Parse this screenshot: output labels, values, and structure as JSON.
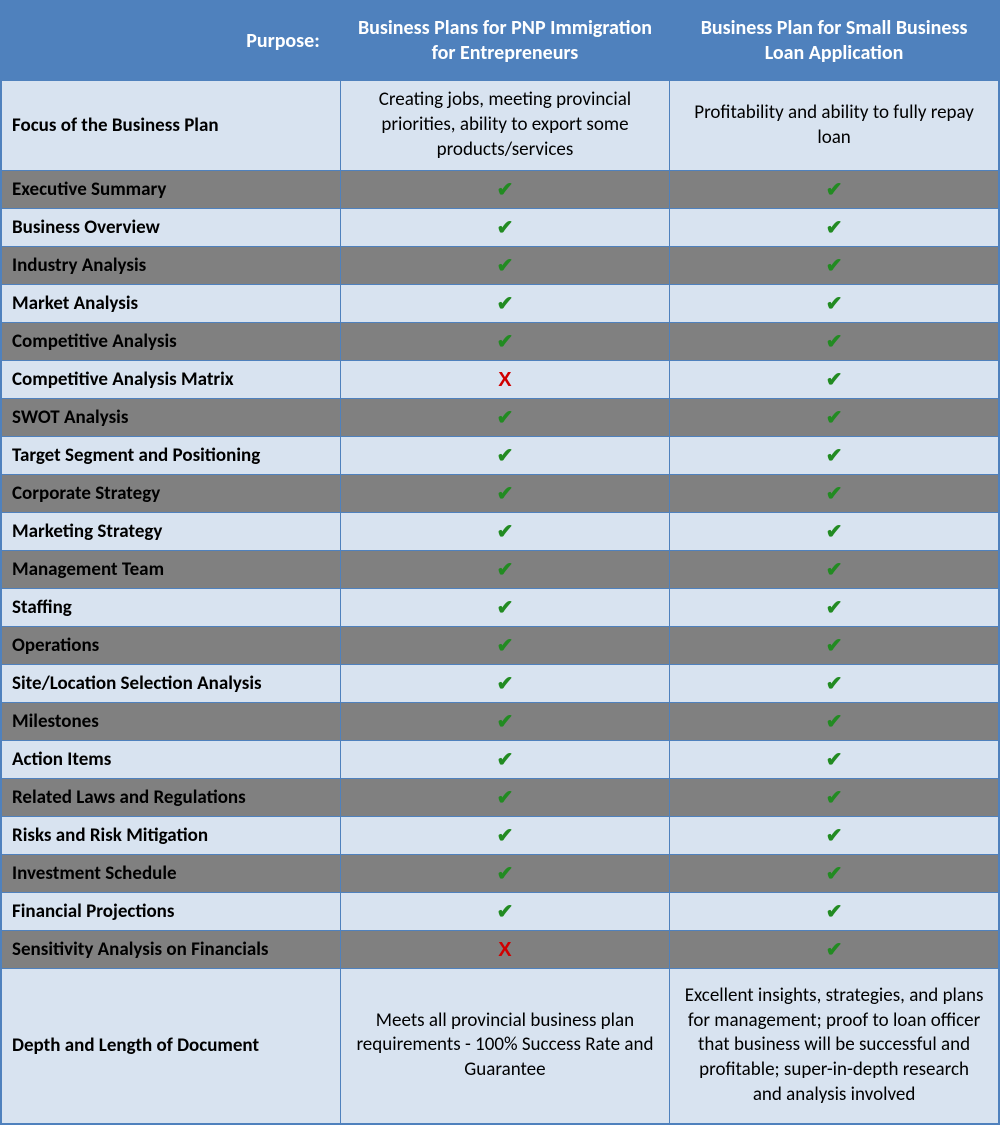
{
  "header": {
    "purpose_label": "Purpose:",
    "col_a": "Business Plans for PNP Immigration for Entrepreneurs",
    "col_b": "Business Plan for Small Business Loan Application"
  },
  "focus": {
    "label": "Focus of the Business Plan",
    "col_a": "Creating jobs, meeting provincial priorities, ability to export some products/services",
    "col_b": "Profitability and ability to fully repay loan"
  },
  "marks": {
    "check": "✔",
    "cross": "X"
  },
  "items": [
    {
      "label": "Executive Summary",
      "a": "check",
      "b": "check",
      "shade": "dark"
    },
    {
      "label": "Business Overview",
      "a": "check",
      "b": "check",
      "shade": "light"
    },
    {
      "label": "Industry Analysis",
      "a": "check",
      "b": "check",
      "shade": "dark"
    },
    {
      "label": "Market Analysis",
      "a": "check",
      "b": "check",
      "shade": "light"
    },
    {
      "label": "Competitive Analysis",
      "a": "check",
      "b": "check",
      "shade": "dark"
    },
    {
      "label": "Competitive Analysis Matrix",
      "a": "cross",
      "b": "check",
      "shade": "light"
    },
    {
      "label": "SWOT Analysis",
      "a": "check",
      "b": "check",
      "shade": "dark"
    },
    {
      "label": "Target Segment and Positioning",
      "a": "check",
      "b": "check",
      "shade": "light"
    },
    {
      "label": "Corporate Strategy",
      "a": "check",
      "b": "check",
      "shade": "dark"
    },
    {
      "label": "Marketing Strategy",
      "a": "check",
      "b": "check",
      "shade": "light"
    },
    {
      "label": "Management Team",
      "a": "check",
      "b": "check",
      "shade": "dark"
    },
    {
      "label": "Staffing",
      "a": "check",
      "b": "check",
      "shade": "light"
    },
    {
      "label": "Operations",
      "a": "check",
      "b": "check",
      "shade": "dark"
    },
    {
      "label": "Site/Location Selection Analysis",
      "a": "check",
      "b": "check",
      "shade": "light"
    },
    {
      "label": "Milestones",
      "a": "check",
      "b": "check",
      "shade": "dark"
    },
    {
      "label": "Action Items",
      "a": "check",
      "b": "check",
      "shade": "light"
    },
    {
      "label": "Related Laws and Regulations",
      "a": "check",
      "b": "check",
      "shade": "dark"
    },
    {
      "label": "Risks and Risk Mitigation",
      "a": "check",
      "b": "check",
      "shade": "light"
    },
    {
      "label": "Investment Schedule",
      "a": "check",
      "b": "check",
      "shade": "dark"
    },
    {
      "label": "Financial Projections",
      "a": "check",
      "b": "check",
      "shade": "light"
    },
    {
      "label": "Sensitivity Analysis on Financials",
      "a": "cross",
      "b": "check",
      "shade": "dark"
    }
  ],
  "depth": {
    "label": "Depth and Length of Document",
    "col_a": "Meets all provincial business plan requirements - 100% Success Rate and Guarantee",
    "col_b": "Excellent insights, strategies, and plans for management; proof to loan officer that business will be successful and profitable; super-in-depth research and analysis involved"
  },
  "colors": {
    "header_bg": "#4f81bd",
    "header_text": "#ffffff",
    "light_bg": "#d8e3f0",
    "dark_bg": "#808080",
    "border": "#4f81bd",
    "check": "#228b22",
    "cross": "#d00000"
  }
}
